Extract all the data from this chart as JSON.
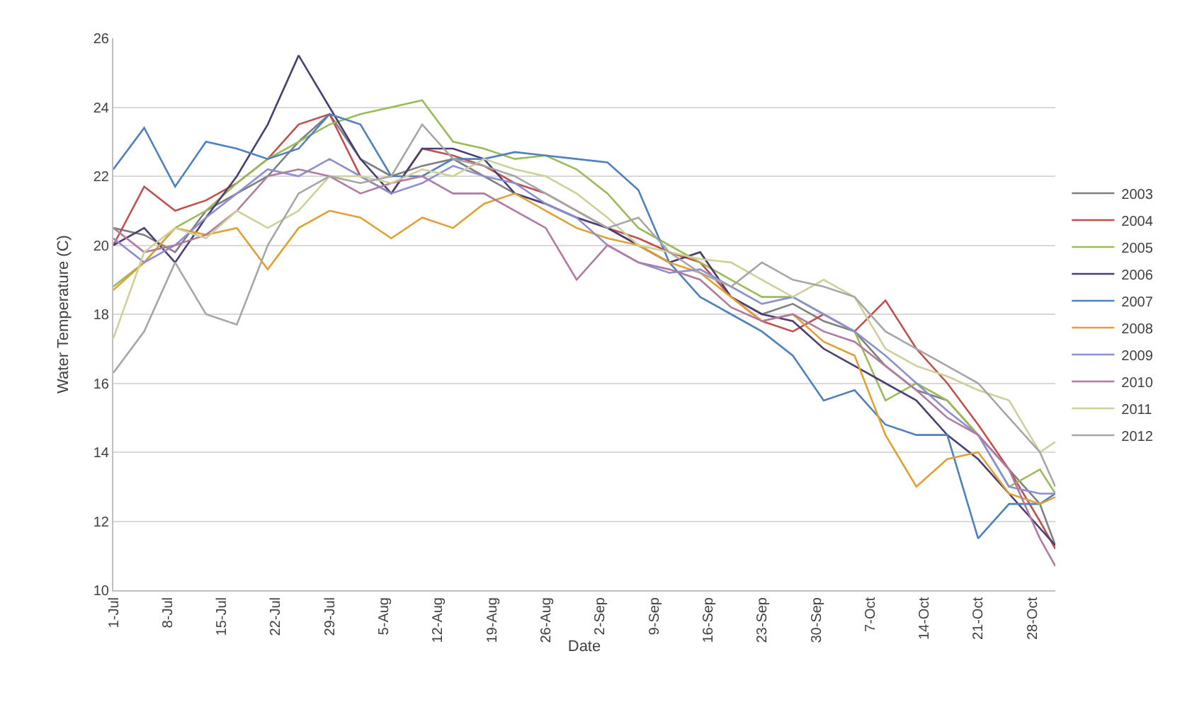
{
  "chart_data": {
    "type": "line",
    "xlabel": "Date",
    "ylabel": "Water Temperature (C)",
    "x": [
      "--07-01",
      "--07-05",
      "--07-09",
      "--07-13",
      "--07-17",
      "--07-21",
      "--07-25",
      "--07-29",
      "--08-02",
      "--08-06",
      "--08-10",
      "--08-14",
      "--08-18",
      "--08-22",
      "--08-26",
      "--08-30",
      "--09-03",
      "--09-07",
      "--09-11",
      "--09-15",
      "--09-19",
      "--09-23",
      "--09-27",
      "--10-01",
      "--10-05",
      "--10-09",
      "--10-13",
      "--10-17",
      "--10-21",
      "--10-25",
      "--10-29",
      "--10-31"
    ],
    "series": [
      {
        "name": "2003",
        "color": "#7f7f7f",
        "values": [
          20.5,
          20.3,
          19.8,
          21.0,
          21.5,
          22.0,
          23.0,
          23.8,
          22.5,
          22.0,
          22.3,
          22.5,
          22.0,
          21.5,
          21.2,
          20.8,
          20.5,
          20.0,
          19.5,
          19.8,
          18.5,
          18.0,
          18.3,
          17.8,
          17.5,
          16.5,
          15.8,
          15.5,
          14.5,
          13.5,
          12.5,
          11.3
        ]
      },
      {
        "name": "2004",
        "color": "#c0504d",
        "values": [
          20.0,
          21.7,
          21.0,
          21.3,
          21.8,
          22.5,
          23.5,
          23.8,
          22.0,
          21.5,
          22.8,
          22.6,
          22.3,
          21.8,
          21.5,
          21.0,
          20.5,
          20.2,
          19.8,
          19.5,
          18.5,
          17.8,
          17.5,
          18.0,
          17.5,
          18.4,
          17.0,
          16.0,
          14.8,
          13.5,
          12.0,
          11.2
        ]
      },
      {
        "name": "2005",
        "color": "#9bbb59",
        "values": [
          18.8,
          19.5,
          20.5,
          21.0,
          21.8,
          22.5,
          23.0,
          23.5,
          23.8,
          24.0,
          24.2,
          23.0,
          22.8,
          22.5,
          22.6,
          22.2,
          21.5,
          20.5,
          20.0,
          19.5,
          19.0,
          18.5,
          18.5,
          18.0,
          17.5,
          15.5,
          16.0,
          15.5,
          14.5,
          13.0,
          13.5,
          12.8
        ]
      },
      {
        "name": "2006",
        "color": "#4b3f72",
        "values": [
          20.0,
          20.5,
          19.5,
          20.8,
          22.0,
          23.5,
          25.5,
          24.0,
          22.5,
          21.5,
          22.8,
          22.8,
          22.5,
          21.5,
          21.2,
          20.8,
          20.5,
          20.0,
          19.5,
          19.8,
          18.5,
          18.0,
          17.8,
          17.0,
          16.5,
          16.0,
          15.5,
          14.5,
          13.8,
          12.8,
          11.8,
          11.3
        ]
      },
      {
        "name": "2007",
        "color": "#4f81bd",
        "values": [
          22.2,
          23.4,
          21.7,
          23.0,
          22.8,
          22.5,
          22.8,
          23.8,
          23.5,
          22.0,
          22.0,
          22.5,
          22.5,
          22.7,
          22.6,
          22.5,
          22.4,
          21.6,
          19.5,
          18.5,
          18.0,
          17.5,
          16.8,
          15.5,
          15.8,
          14.8,
          14.5,
          14.5,
          11.5,
          12.5,
          12.5,
          12.8
        ]
      },
      {
        "name": "2008",
        "color": "#e1a034",
        "values": [
          18.7,
          19.5,
          20.5,
          20.3,
          20.5,
          19.3,
          20.5,
          21.0,
          20.8,
          20.2,
          20.8,
          20.5,
          21.2,
          21.5,
          21.0,
          20.5,
          20.2,
          20.0,
          19.5,
          19.2,
          18.5,
          17.8,
          18.0,
          17.2,
          16.8,
          14.5,
          13.0,
          13.8,
          14.0,
          12.8,
          12.5,
          12.7
        ]
      },
      {
        "name": "2009",
        "color": "#8c8fd1",
        "values": [
          20.2,
          19.5,
          20.0,
          20.8,
          21.5,
          22.2,
          22.0,
          22.5,
          22.0,
          21.5,
          21.8,
          22.3,
          22.0,
          21.8,
          21.2,
          20.8,
          20.0,
          19.5,
          19.2,
          19.3,
          18.8,
          18.3,
          18.5,
          18.0,
          17.5,
          16.8,
          16.0,
          15.2,
          14.5,
          13.0,
          12.8,
          12.8
        ]
      },
      {
        "name": "2010",
        "color": "#b07aa1",
        "values": [
          20.5,
          19.8,
          20.0,
          20.3,
          21.0,
          22.0,
          22.2,
          22.0,
          21.5,
          21.8,
          22.0,
          21.5,
          21.5,
          21.0,
          20.5,
          19.0,
          20.0,
          19.5,
          19.3,
          19.0,
          18.2,
          17.8,
          18.0,
          17.5,
          17.2,
          16.5,
          15.8,
          15.0,
          14.5,
          13.5,
          11.5,
          10.7
        ]
      },
      {
        "name": "2011",
        "color": "#cfcf9a",
        "values": [
          17.3,
          19.8,
          20.5,
          20.2,
          21.0,
          20.5,
          21.0,
          22.0,
          22.0,
          21.8,
          22.2,
          22.0,
          22.5,
          22.2,
          22.0,
          21.5,
          20.8,
          20.0,
          19.8,
          19.6,
          19.5,
          19.0,
          18.5,
          19.0,
          18.5,
          17.0,
          16.5,
          16.2,
          15.8,
          15.5,
          14.0,
          14.3
        ]
      },
      {
        "name": "2012",
        "color": "#a6a6a6",
        "values": [
          16.3,
          17.5,
          19.5,
          18.0,
          17.7,
          20.0,
          21.5,
          22.0,
          21.8,
          22.0,
          23.5,
          22.5,
          22.3,
          22.0,
          21.5,
          21.0,
          20.5,
          20.8,
          19.8,
          19.2,
          18.8,
          19.5,
          19.0,
          18.8,
          18.5,
          17.5,
          17.0,
          16.5,
          16.0,
          15.0,
          14.0,
          13.0
        ]
      }
    ],
    "xlim": [
      "--07-01",
      "--10-31"
    ],
    "xticks": [
      {
        "value": "--07-01",
        "label": "1-Jul"
      },
      {
        "value": "--07-08",
        "label": "8-Jul"
      },
      {
        "value": "--07-15",
        "label": "15-Jul"
      },
      {
        "value": "--07-22",
        "label": "22-Jul"
      },
      {
        "value": "--07-29",
        "label": "29-Jul"
      },
      {
        "value": "--08-05",
        "label": "5-Aug"
      },
      {
        "value": "--08-12",
        "label": "12-Aug"
      },
      {
        "value": "--08-19",
        "label": "19-Aug"
      },
      {
        "value": "--08-26",
        "label": "26-Aug"
      },
      {
        "value": "--09-02",
        "label": "2-Sep"
      },
      {
        "value": "--09-09",
        "label": "9-Sep"
      },
      {
        "value": "--09-16",
        "label": "16-Sep"
      },
      {
        "value": "--09-23",
        "label": "23-Sep"
      },
      {
        "value": "--09-30",
        "label": "30-Sep"
      },
      {
        "value": "--10-07",
        "label": "7-Oct"
      },
      {
        "value": "--10-14",
        "label": "14-Oct"
      },
      {
        "value": "--10-21",
        "label": "21-Oct"
      },
      {
        "value": "--10-28",
        "label": "28-Oct"
      }
    ],
    "ylim": [
      10,
      26
    ],
    "yticks": [
      10,
      12,
      14,
      16,
      18,
      20,
      22,
      24,
      26
    ],
    "grid": "y",
    "legend": "right",
    "line_style": "solid"
  }
}
